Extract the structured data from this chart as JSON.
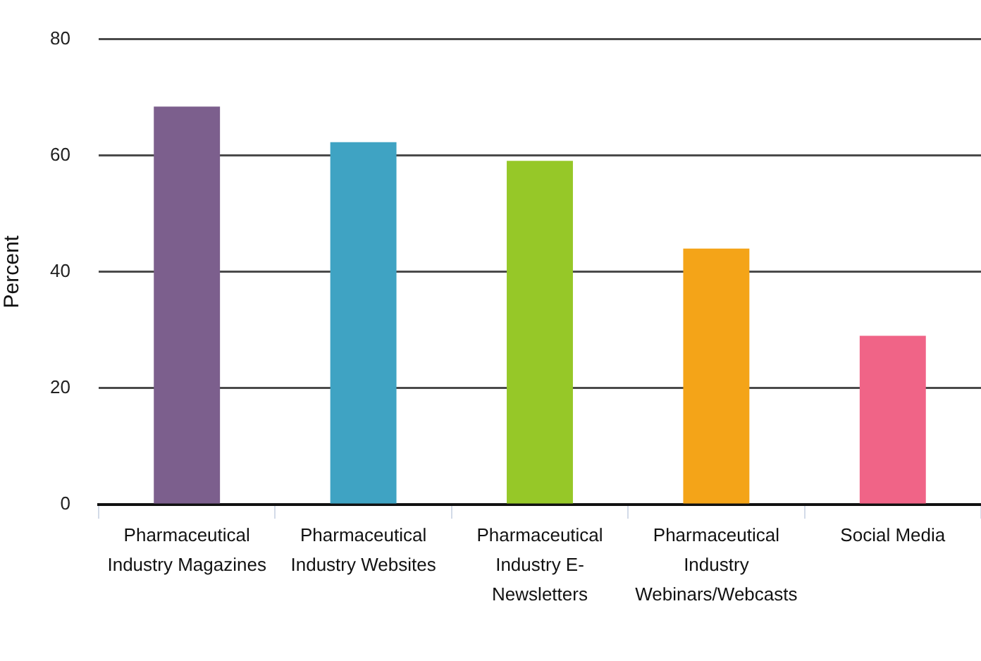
{
  "chart_data": {
    "type": "bar",
    "ylabel": "Percent",
    "categories": [
      "Pharmaceutical Industry Magazines",
      "Pharmaceutical Industry Websites",
      "Pharmaceutical Industry E-Newsletters",
      "Pharmaceutical Industry Webinars/Webcasts",
      "Social Media"
    ],
    "values": [
      68.4,
      62.3,
      59.1,
      44,
      29
    ],
    "colors": [
      "#7c5f8d",
      "#3fa3c3",
      "#96c828",
      "#f4a418",
      "#f06487"
    ],
    "ylim": [
      0,
      80
    ],
    "yticks": [
      0,
      20,
      40,
      60,
      80
    ],
    "grid": "y"
  }
}
